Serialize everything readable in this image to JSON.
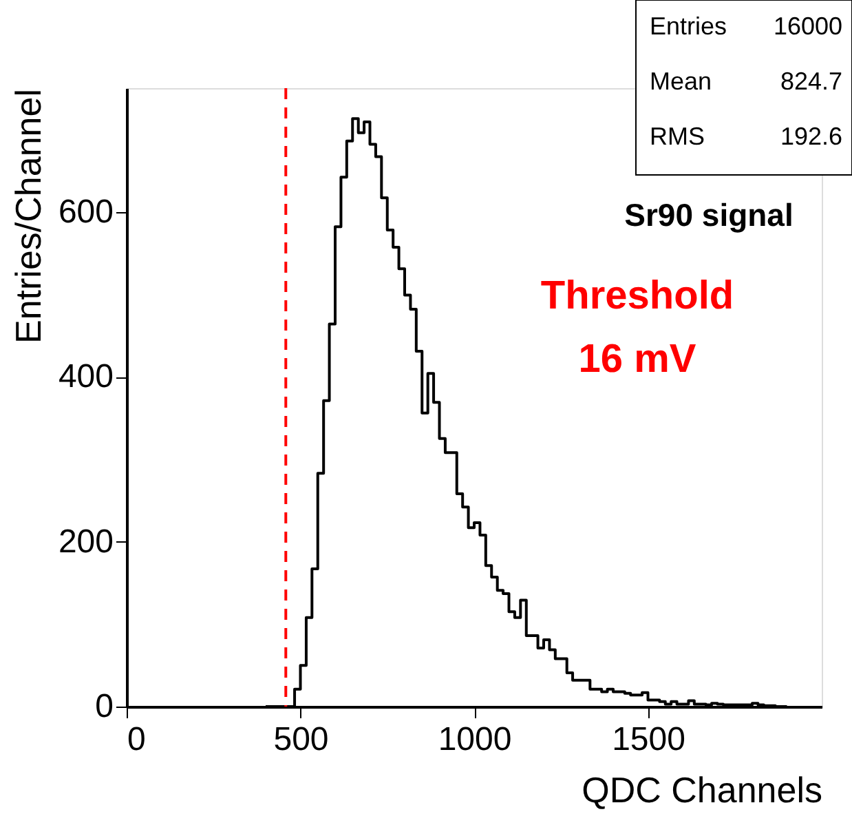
{
  "chart_data": {
    "type": "histogram",
    "xlabel": "QDC Channels",
    "ylabel": "Entries/Channel",
    "bins": [
      400,
      416.7,
      433.3,
      450,
      466.7,
      483.3,
      500,
      516.7,
      533.3,
      550,
      566.7,
      583.3,
      600,
      616.7,
      633.3,
      650,
      666.7,
      683.3,
      700,
      716.7,
      733.3,
      750,
      766.7,
      783.3,
      800,
      816.7,
      833.3,
      850,
      866.7,
      883.3,
      900,
      916.7,
      933.3,
      950,
      966.7,
      983.3,
      1000,
      1016.7,
      1033.3,
      1050,
      1066.7,
      1083.3,
      1100,
      1116.7,
      1133.3,
      1150,
      1166.7,
      1183.3,
      1200,
      1216.7,
      1233.3,
      1250,
      1266.7,
      1283.3,
      1300,
      1316.7,
      1333.3,
      1350,
      1366.7,
      1383.3,
      1400,
      1416.7,
      1433.3,
      1450,
      1466.7,
      1483.3,
      1500,
      1516.7,
      1533.3,
      1550,
      1566.7,
      1583.3,
      1600,
      1616.7,
      1633.3,
      1650,
      1666.7,
      1683.3,
      1700,
      1716.7,
      1733.3,
      1750,
      1766.7,
      1783.3,
      1800,
      1816.7,
      1833.3,
      1850,
      1866.7,
      1883.3,
      1900
    ],
    "values": [
      0,
      0,
      0,
      0,
      0,
      21,
      50,
      108,
      167,
      283,
      371,
      464,
      582,
      642,
      686,
      713,
      696,
      709,
      682,
      667,
      617,
      578,
      557,
      531,
      499,
      482,
      431,
      356,
      404,
      369,
      325,
      308,
      308,
      258,
      242,
      217,
      223,
      208,
      171,
      157,
      141,
      137,
      115,
      108,
      129,
      86,
      86,
      71,
      81,
      69,
      58,
      58,
      41,
      32,
      32,
      32,
      21,
      21,
      18,
      21,
      18,
      18,
      16,
      14,
      14,
      17,
      8,
      8,
      6,
      3,
      6,
      3,
      3,
      7,
      3,
      3,
      2,
      4,
      3,
      2,
      2,
      2,
      2,
      2,
      4,
      2,
      1,
      1,
      0,
      0
    ],
    "color": "#000000",
    "xlim": [
      0,
      2000
    ],
    "xticks": [
      0,
      500,
      1000,
      1500
    ],
    "ylim": [
      0,
      750
    ],
    "yticks": [
      0,
      200,
      400,
      600
    ],
    "grid": false,
    "ref_lines": [
      {
        "axis": "x",
        "value": 458,
        "color": "#ff0000",
        "line_style": "dashed"
      }
    ],
    "annotations": [
      "Entries 16000",
      "Mean 824.7",
      "RMS 192.6",
      "Sr90 signal",
      "Threshold\n16 mV"
    ]
  }
}
